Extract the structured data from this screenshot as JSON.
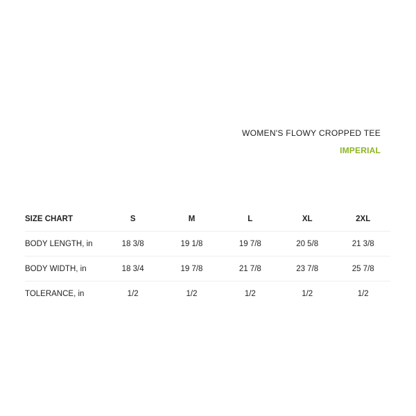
{
  "product_title": "WOMEN'S FLOWY CROPPED TEE",
  "unit_system": "IMPERIAL",
  "colors": {
    "accent": "#8cb421",
    "text": "#222222",
    "divider": "#eeeeee"
  },
  "table": {
    "header": [
      "SIZE CHART",
      "S",
      "M",
      "L",
      "XL",
      "2XL"
    ],
    "rows": [
      [
        "BODY LENGTH, in",
        "18 3/8",
        "19 1/8",
        "19 7/8",
        "20 5/8",
        "21 3/8"
      ],
      [
        "BODY WIDTH, in",
        "18 3/4",
        "19 7/8",
        "21 7/8",
        "23 7/8",
        "25 7/8"
      ],
      [
        "TOLERANCE, in",
        "1/2",
        "1/2",
        "1/2",
        "1/2",
        "1/2"
      ]
    ]
  }
}
